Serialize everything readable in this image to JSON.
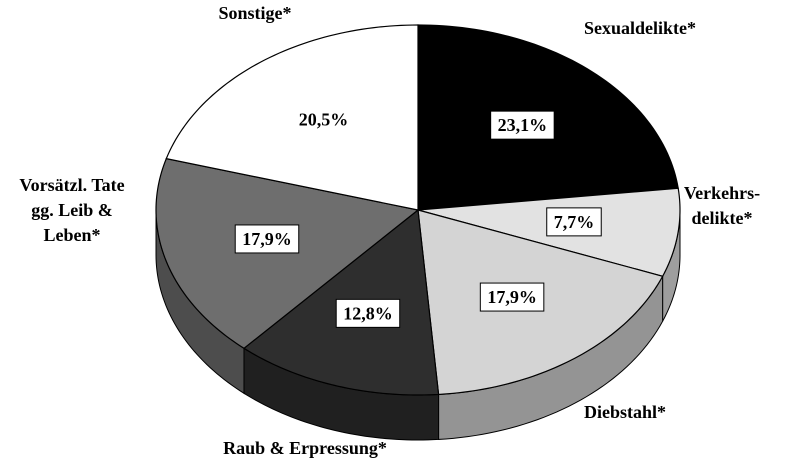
{
  "chart_data": {
    "type": "pie",
    "categories": [
      "Sexualdelikte*",
      "Verkehrs-\ndelikte*",
      "Diebstahl*",
      "Raub & Erpressung*",
      "Vorsätzl. Tate\ngg. Leib &\nLeben*",
      "Sonstige*"
    ],
    "values": [
      23.1,
      7.7,
      17.9,
      12.8,
      17.9,
      20.5
    ],
    "value_labels": [
      "23,1%",
      "7,7%",
      "17,9%",
      "12,8%",
      "17,9%",
      "20,5%"
    ],
    "colors": [
      "#000000",
      "#e2e2e2",
      "#d4d4d4",
      "#2e2e2e",
      "#6e6e6e",
      "#ffffff"
    ]
  }
}
